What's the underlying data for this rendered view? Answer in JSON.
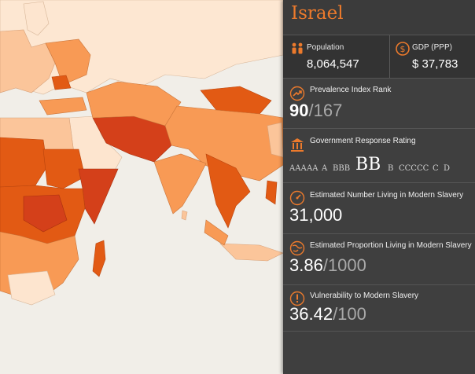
{
  "country": "Israel",
  "population": {
    "label": "Population",
    "value": "8,064,547",
    "icon": "people-icon"
  },
  "gdp": {
    "label": "GDP (PPP)",
    "value": "$ 37,783",
    "icon": "dollar-coin-icon"
  },
  "prevalence": {
    "label": "Prevalence Index Rank",
    "rank": "90",
    "total": "/167",
    "icon": "trend-arrow-icon"
  },
  "government": {
    "label": "Government Response Rating",
    "icon": "government-building-icon",
    "ratings": [
      "AAA",
      "AA",
      "A",
      "BBB",
      "BB",
      "B",
      "CCC",
      "CC",
      "C",
      "D"
    ],
    "selected": "BB"
  },
  "estimated_number": {
    "label": "Estimated Number Living in Modern Slavery",
    "value": "31,000",
    "icon": "gauge-icon"
  },
  "estimated_proportion": {
    "label": "Estimated Proportion Living in Modern Slavery",
    "value": "3.86",
    "total": "/1000",
    "icon": "globe-icon"
  },
  "vulnerability": {
    "label": "Vulnerability to Modern Slavery",
    "value": "36.42",
    "total": "/100",
    "icon": "exclamation-icon"
  },
  "colors": {
    "accent": "#ec7a2c",
    "panel": "#3f3f3f",
    "map_background": "#f1eee8",
    "choropleth_scale": [
      "#fde5cf",
      "#fbc59a",
      "#f89a55",
      "#ec7a2c",
      "#e25a14",
      "#d4401a"
    ]
  }
}
